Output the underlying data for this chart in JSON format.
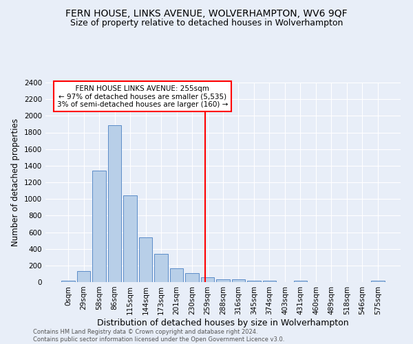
{
  "title": "FERN HOUSE, LINKS AVENUE, WOLVERHAMPTON, WV6 9QF",
  "subtitle": "Size of property relative to detached houses in Wolverhampton",
  "xlabel": "Distribution of detached houses by size in Wolverhampton",
  "ylabel": "Number of detached properties",
  "footnote1": "Contains HM Land Registry data © Crown copyright and database right 2024.",
  "footnote2": "Contains public sector information licensed under the Open Government Licence v3.0.",
  "bar_labels": [
    "0sqm",
    "29sqm",
    "58sqm",
    "86sqm",
    "115sqm",
    "144sqm",
    "173sqm",
    "201sqm",
    "230sqm",
    "259sqm",
    "288sqm",
    "316sqm",
    "345sqm",
    "374sqm",
    "403sqm",
    "431sqm",
    "460sqm",
    "489sqm",
    "518sqm",
    "546sqm",
    "575sqm"
  ],
  "bar_values": [
    20,
    130,
    1340,
    1890,
    1045,
    540,
    340,
    165,
    110,
    55,
    35,
    30,
    20,
    15,
    0,
    18,
    0,
    0,
    0,
    0,
    18
  ],
  "bar_color": "#b8cfe8",
  "bar_edge_color": "#5b8cc8",
  "annotation_line_color": "red",
  "annotation_box_text": "  FERN HOUSE LINKS AVENUE: 255sqm  \n← 97% of detached houses are smaller (5,535)\n3% of semi-detached houses are larger (160) →",
  "ylim": [
    0,
    2400
  ],
  "yticks": [
    0,
    200,
    400,
    600,
    800,
    1000,
    1200,
    1400,
    1600,
    1800,
    2000,
    2200,
    2400
  ],
  "background_color": "#e8eef8",
  "grid_color": "#ffffff",
  "title_fontsize": 10,
  "subtitle_fontsize": 9,
  "xlabel_fontsize": 9,
  "ylabel_fontsize": 8.5,
  "tick_fontsize": 7.5,
  "annot_fontsize": 7.5
}
